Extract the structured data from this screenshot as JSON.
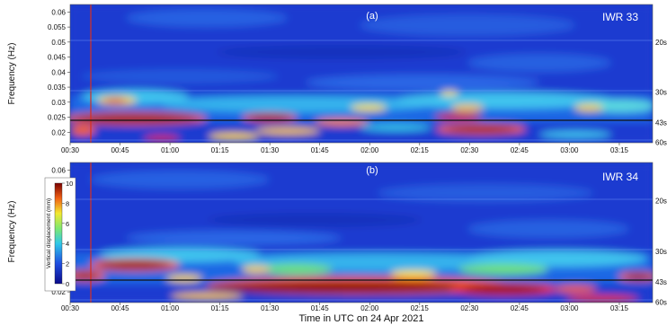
{
  "figure": {
    "xlabel": "Time in UTC on 24 Apr 2021"
  },
  "chart_data": [
    {
      "type": "heatmap",
      "panel_label": "(a)",
      "station": "IWR 33",
      "ylabel": "Frequency (Hz)",
      "ylim": [
        0.0165,
        0.0625
      ],
      "xlim": [
        "00:30",
        "03:25"
      ],
      "y_ticks": [
        "0.06",
        "0.055",
        "0.05",
        "0.045",
        "0.04",
        "0.035",
        "0.03",
        "0.025",
        "0.02"
      ],
      "x_ticks": [
        "00:30",
        "00:45",
        "01:00",
        "01:15",
        "01:30",
        "01:45",
        "02:00",
        "02:15",
        "02:30",
        "02:45",
        "03:00",
        "03:15"
      ],
      "period_labels": [
        "20s",
        "30s",
        "43s",
        "60s"
      ],
      "event_time": "00:45",
      "highlight_frequency": 0.0233,
      "hotspots": [
        {
          "time": "00:50",
          "frequency": 0.0225,
          "amplitude": 10
        },
        {
          "time": "01:08",
          "frequency": 0.0228,
          "amplitude": 10
        },
        {
          "time": "01:33",
          "frequency": 0.0235,
          "amplitude": 9
        },
        {
          "time": "01:50",
          "frequency": 0.022,
          "amplitude": 8
        },
        {
          "time": "02:38",
          "frequency": 0.02,
          "amplitude": 9
        },
        {
          "time": "02:33",
          "frequency": 0.0245,
          "amplitude": 7
        },
        {
          "time": "00:52",
          "frequency": 0.03,
          "amplitude": 6
        },
        {
          "time": "01:17",
          "frequency": 0.019,
          "amplitude": 7
        }
      ]
    },
    {
      "type": "heatmap",
      "panel_label": "(b)",
      "station": "IWR 34",
      "ylabel": "Frequency (Hz)",
      "ylim": [
        0.0165,
        0.0625
      ],
      "xlim": [
        "00:30",
        "03:25"
      ],
      "y_ticks": [
        "0.06",
        "0.055",
        "0.05",
        "0.045",
        "0.04",
        "0.035",
        "0.03",
        "0.025",
        "0.02"
      ],
      "x_ticks": [
        "00:30",
        "00:45",
        "01:00",
        "01:15",
        "01:30",
        "01:45",
        "02:00",
        "02:15",
        "02:30",
        "02:45",
        "03:00",
        "03:15"
      ],
      "period_labels": [
        "20s",
        "30s",
        "43s",
        "60s"
      ],
      "event_time": "00:45",
      "highlight_frequency": 0.0233,
      "colorbar": {
        "label": "Vertical displacement (mm)",
        "range": [
          0,
          10
        ],
        "ticks": [
          "10",
          "8",
          "6",
          "4",
          "2",
          "0"
        ]
      },
      "hotspots": [
        {
          "time": "01:00",
          "frequency": 0.028,
          "amplitude": 9
        },
        {
          "time": "01:20",
          "frequency": 0.019,
          "amplitude": 8
        },
        {
          "time": "01:45",
          "frequency": 0.02,
          "amplitude": 10
        },
        {
          "time": "02:05",
          "frequency": 0.02,
          "amplitude": 10
        },
        {
          "time": "02:28",
          "frequency": 0.0195,
          "amplitude": 10
        },
        {
          "time": "02:55",
          "frequency": 0.02,
          "amplitude": 9
        },
        {
          "time": "03:20",
          "frequency": 0.024,
          "amplitude": 9
        },
        {
          "time": "00:42",
          "frequency": 0.0245,
          "amplitude": 8
        }
      ]
    }
  ]
}
